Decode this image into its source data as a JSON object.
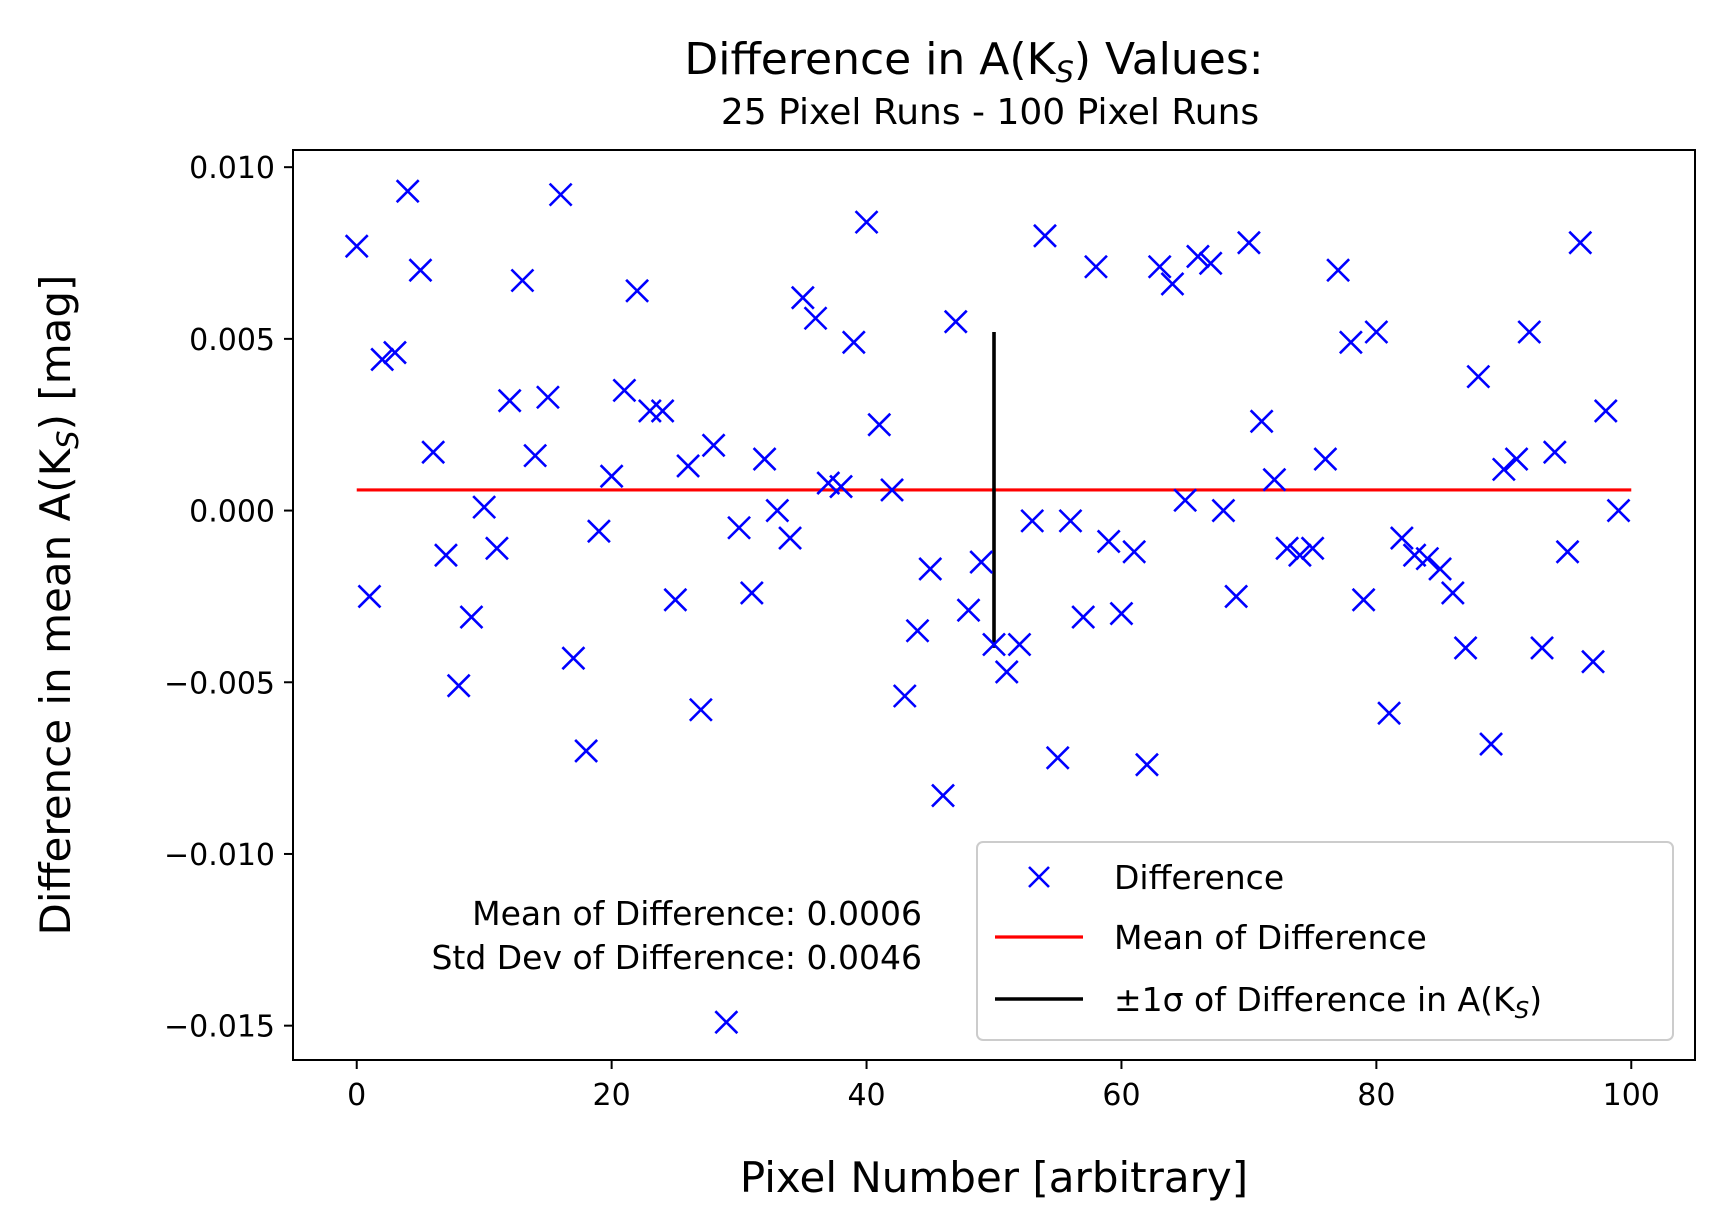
{
  "chart_data": {
    "type": "scatter",
    "title": "Difference in A(K",
    "title_subscript": "S",
    "title_suffix": ") Values:",
    "subtitle": "25 Pixel Runs - 100 Pixel Runs",
    "xlabel": "Pixel Number [arbitrary]",
    "ylabel": "Difference in mean A(K",
    "ylabel_subscript": "S",
    "ylabel_suffix": ") [mag]",
    "xlim": [
      -5,
      105
    ],
    "ylim": [
      -0.016,
      0.0105
    ],
    "xticks": [
      0,
      20,
      40,
      60,
      80,
      100
    ],
    "xtick_labels": [
      "0",
      "20",
      "40",
      "60",
      "80",
      "100"
    ],
    "yticks": [
      0.01,
      0.005,
      0.0,
      -0.005,
      -0.01,
      -0.015
    ],
    "ytick_labels": [
      "0.010",
      "0.005",
      "0.000",
      "−0.005",
      "−0.010",
      "−0.015"
    ],
    "series": [
      {
        "name": "Difference",
        "marker": "x",
        "color": "#0000ff",
        "x": [
          0,
          1,
          2,
          3,
          4,
          5,
          6,
          7,
          8,
          9,
          10,
          11,
          12,
          13,
          14,
          15,
          16,
          17,
          18,
          19,
          20,
          21,
          22,
          23,
          24,
          25,
          26,
          27,
          28,
          29,
          30,
          31,
          32,
          33,
          34,
          35,
          36,
          37,
          38,
          39,
          40,
          41,
          42,
          43,
          44,
          45,
          46,
          47,
          48,
          49,
          50,
          51,
          52,
          53,
          54,
          55,
          56,
          57,
          58,
          59,
          60,
          61,
          62,
          63,
          64,
          65,
          66,
          67,
          68,
          69,
          70,
          71,
          72,
          73,
          74,
          75,
          76,
          77,
          78,
          79,
          80,
          81,
          82,
          83,
          84,
          85,
          86,
          87,
          88,
          89,
          90,
          91,
          92,
          93,
          94,
          95,
          96,
          97,
          98,
          99
        ],
        "y": [
          0.0077,
          -0.0025,
          0.0044,
          0.0046,
          0.0093,
          0.007,
          0.0017,
          -0.0013,
          -0.0051,
          -0.0031,
          0.0001,
          -0.0011,
          0.0032,
          0.0067,
          0.0016,
          0.0033,
          0.0092,
          -0.0043,
          -0.007,
          -0.0006,
          0.001,
          0.0035,
          0.0064,
          0.0029,
          0.0029,
          -0.0026,
          0.0013,
          -0.0058,
          0.0019,
          -0.0149,
          -0.0005,
          -0.0024,
          0.0015,
          -0.0,
          -0.0008,
          0.0062,
          0.0056,
          0.0008,
          0.0007,
          0.0049,
          0.0084,
          0.0025,
          0.0006,
          -0.0054,
          -0.0035,
          -0.0017,
          -0.0083,
          0.0055,
          -0.0029,
          -0.0015,
          -0.0039,
          -0.0047,
          -0.0039,
          -0.0003,
          0.008,
          -0.0072,
          -0.0003,
          -0.0031,
          0.0071,
          -0.0009,
          -0.003,
          -0.0012,
          -0.0074,
          0.0071,
          0.0066,
          0.0003,
          0.0074,
          0.0072,
          -0.0,
          -0.0025,
          0.0078,
          0.0026,
          0.0009,
          -0.0011,
          -0.0013,
          -0.0011,
          0.0015,
          0.007,
          0.0049,
          -0.0026,
          0.0052,
          -0.0059,
          -0.0008,
          -0.0013,
          -0.0014,
          -0.0017,
          -0.0024,
          -0.004,
          0.0039,
          -0.0068,
          0.0012,
          0.0015,
          0.0052,
          -0.004,
          0.0017,
          -0.0012,
          0.0078,
          -0.0044,
          0.0029,
          -0.0
        ]
      },
      {
        "name": "Mean of Difference",
        "type": "hline",
        "color": "#ff0000",
        "y": 0.0006,
        "x_range": [
          0,
          100
        ]
      },
      {
        "name": "±1σ of Difference in A(K",
        "name_subscript": "S",
        "name_suffix": ")",
        "type": "vline",
        "color": "#000000",
        "x": 50,
        "y_range": [
          -0.004,
          0.0052
        ]
      }
    ],
    "annotations": [
      "Mean of Difference: 0.0006",
      "Std Dev of Difference: 0.0046"
    ],
    "legend": {
      "position": "lower-right",
      "entries": [
        "Difference",
        "Mean of Difference",
        "±1σ of Difference in A(K"
      ],
      "entry3_subscript": "S",
      "entry3_suffix": ")"
    }
  }
}
